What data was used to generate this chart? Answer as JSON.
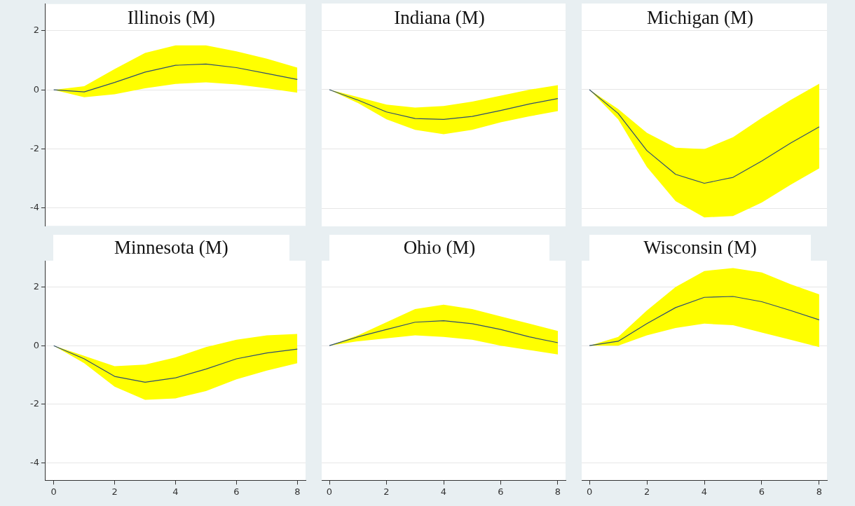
{
  "chart_data": [
    {
      "type": "line",
      "title": "Illinois (M)",
      "x": [
        0,
        1,
        2,
        3,
        4,
        5,
        6,
        7,
        8
      ],
      "xlim": [
        -0.27,
        8.27
      ],
      "xticks": [
        0,
        2,
        4,
        6,
        8
      ],
      "ylim": [
        -4.6,
        2.9
      ],
      "yticks": [
        -4,
        -2,
        0,
        2
      ],
      "grid": "y",
      "tick_labels": "y",
      "series": [
        {
          "color": "#2f4f6f",
          "values": [
            0,
            -0.07,
            0.25,
            0.6,
            0.83,
            0.87,
            0.75,
            0.55,
            0.35
          ],
          "lower": [
            0,
            -0.25,
            -0.15,
            0.05,
            0.2,
            0.25,
            0.18,
            0.05,
            -0.1
          ],
          "upper": [
            0,
            0.12,
            0.7,
            1.25,
            1.5,
            1.5,
            1.3,
            1.05,
            0.75
          ]
        }
      ]
    },
    {
      "type": "line",
      "title": "Indiana (M)",
      "x": [
        0,
        1,
        2,
        3,
        4,
        5,
        6,
        7,
        8
      ],
      "xlim": [
        -0.27,
        8.27
      ],
      "xticks": [
        0,
        2,
        4,
        6,
        8
      ],
      "ylim": [
        -4.6,
        2.9
      ],
      "yticks": [
        -4,
        -2,
        0,
        2
      ],
      "grid": "y",
      "tick_labels": false,
      "series": [
        {
          "color": "#2f4f6f",
          "values": [
            0,
            -0.35,
            -0.75,
            -0.97,
            -1.0,
            -0.9,
            -0.7,
            -0.48,
            -0.3
          ],
          "lower": [
            0,
            -0.45,
            -1.0,
            -1.35,
            -1.5,
            -1.35,
            -1.1,
            -0.9,
            -0.72
          ],
          "upper": [
            0,
            -0.25,
            -0.5,
            -0.6,
            -0.55,
            -0.4,
            -0.2,
            0,
            0.15
          ]
        }
      ]
    },
    {
      "type": "line",
      "title": "Michigan (M)",
      "x": [
        0,
        1,
        2,
        3,
        4,
        5,
        6,
        7,
        8
      ],
      "xlim": [
        -0.27,
        8.27
      ],
      "xticks": [
        0,
        2,
        4,
        6,
        8
      ],
      "ylim": [
        -4.6,
        2.9
      ],
      "yticks": [
        -4,
        -2,
        0,
        2
      ],
      "grid": "y",
      "tick_labels": false,
      "series": [
        {
          "color": "#2f4f6f",
          "values": [
            0,
            -0.8,
            -2.05,
            -2.85,
            -3.15,
            -2.95,
            -2.4,
            -1.8,
            -1.25
          ],
          "lower": [
            0,
            -1.0,
            -2.6,
            -3.75,
            -4.3,
            -4.25,
            -3.8,
            -3.2,
            -2.65
          ],
          "upper": [
            0,
            -0.65,
            -1.45,
            -1.95,
            -2.0,
            -1.6,
            -0.95,
            -0.35,
            0.2
          ]
        }
      ]
    },
    {
      "type": "line",
      "title": "Minnesota (M)",
      "x": [
        0,
        1,
        2,
        3,
        4,
        5,
        6,
        7,
        8
      ],
      "xlim": [
        -0.27,
        8.27
      ],
      "xticks": [
        0,
        2,
        4,
        6,
        8
      ],
      "ylim": [
        -4.6,
        2.9
      ],
      "yticks": [
        -4,
        -2,
        0,
        2
      ],
      "grid": "y",
      "series": [
        {
          "color": "#2f4f6f",
          "values": [
            0,
            -0.45,
            -1.05,
            -1.25,
            -1.1,
            -0.8,
            -0.45,
            -0.25,
            -0.12
          ],
          "lower": [
            0,
            -0.6,
            -1.4,
            -1.85,
            -1.8,
            -1.55,
            -1.15,
            -0.85,
            -0.6
          ],
          "upper": [
            0,
            -0.35,
            -0.7,
            -0.65,
            -0.4,
            -0.05,
            0.2,
            0.35,
            0.4
          ]
        }
      ]
    },
    {
      "type": "line",
      "title": "Ohio (M)",
      "x": [
        0,
        1,
        2,
        3,
        4,
        5,
        6,
        7,
        8
      ],
      "xlim": [
        -0.27,
        8.27
      ],
      "xticks": [
        0,
        2,
        4,
        6,
        8
      ],
      "ylim": [
        -4.6,
        2.9
      ],
      "yticks": [
        -4,
        -2,
        0,
        2
      ],
      "grid": "y",
      "tick_labels": "x",
      "series": [
        {
          "color": "#2f4f6f",
          "values": [
            0,
            0.3,
            0.55,
            0.8,
            0.85,
            0.75,
            0.55,
            0.3,
            0.1
          ],
          "lower": [
            0,
            0.15,
            0.25,
            0.35,
            0.3,
            0.2,
            0.0,
            -0.15,
            -0.3
          ],
          "upper": [
            0,
            0.35,
            0.8,
            1.25,
            1.4,
            1.25,
            1.0,
            0.75,
            0.5
          ]
        }
      ]
    },
    {
      "type": "line",
      "title": "Wisconsin (M)",
      "x": [
        0,
        1,
        2,
        3,
        4,
        5,
        6,
        7,
        8
      ],
      "xlim": [
        -0.27,
        8.27
      ],
      "xticks": [
        0,
        2,
        4,
        6,
        8
      ],
      "ylim": [
        -4.6,
        2.9
      ],
      "yticks": [
        -4,
        -2,
        0,
        2
      ],
      "grid": "y",
      "tick_labels": "x",
      "series": [
        {
          "color": "#2f4f6f",
          "values": [
            0,
            0.15,
            0.75,
            1.3,
            1.65,
            1.68,
            1.5,
            1.2,
            0.88
          ],
          "lower": [
            0,
            0.0,
            0.35,
            0.6,
            0.75,
            0.7,
            0.45,
            0.2,
            -0.05
          ],
          "upper": [
            0,
            0.3,
            1.2,
            2.0,
            2.55,
            2.65,
            2.5,
            2.1,
            1.75
          ]
        }
      ]
    }
  ]
}
